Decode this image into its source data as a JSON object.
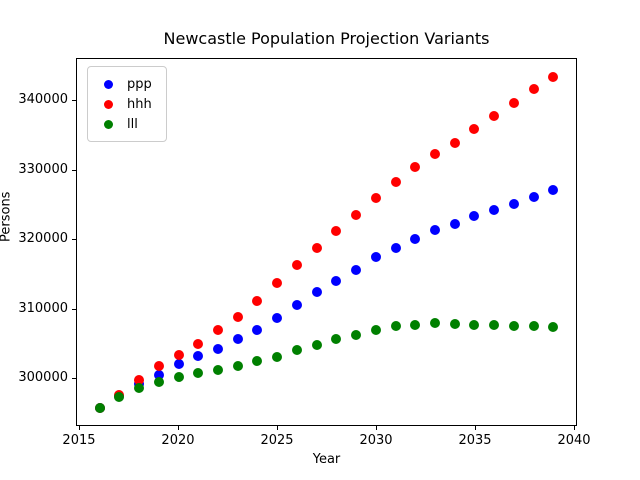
{
  "title": "Newcastle Population Projection Variants",
  "axes": {
    "xlabel": "Year",
    "ylabel": "Persons"
  },
  "legend": {
    "items": [
      {
        "label": "ppp",
        "color": "#0000ff"
      },
      {
        "label": "hhh",
        "color": "#ff0000"
      },
      {
        "label": "lll",
        "color": "#008000"
      }
    ]
  },
  "chart_data": {
    "type": "scatter",
    "title": "Newcastle Population Projection Variants",
    "xlabel": "Year",
    "ylabel": "Persons",
    "x": [
      2016,
      2017,
      2018,
      2019,
      2020,
      2021,
      2022,
      2023,
      2024,
      2025,
      2026,
      2027,
      2028,
      2029,
      2030,
      2031,
      2032,
      2033,
      2034,
      2035,
      2036,
      2037,
      2038,
      2039
    ],
    "series": [
      {
        "name": "ppp",
        "color": "#0000ff",
        "values": [
          295500,
          297300,
          299000,
          300400,
          301900,
          303100,
          304100,
          305500,
          306900,
          308600,
          310500,
          312400,
          313900,
          315600,
          317400,
          318800,
          320100,
          321300,
          322200,
          323400,
          324300,
          325100,
          326100,
          327100
        ]
      },
      {
        "name": "hhh",
        "color": "#ff0000",
        "values": [
          295500,
          297400,
          299600,
          301600,
          303300,
          304900,
          306900,
          308800,
          311100,
          313600,
          316300,
          318700,
          321200,
          323500,
          325900,
          328300,
          330400,
          332300,
          334000,
          336000,
          337800,
          339700,
          341700,
          343500
        ]
      },
      {
        "name": "lll",
        "color": "#008000",
        "values": [
          295500,
          297200,
          298500,
          299300,
          300000,
          300600,
          301100,
          301700,
          302300,
          302900,
          303900,
          304700,
          305500,
          306200,
          306900,
          307400,
          307600,
          307800,
          307700,
          307600,
          307600,
          307400,
          307400,
          307300
        ]
      }
    ],
    "xlim": [
      2014.85,
      2040.15
    ],
    "ylim": [
      293100,
      346100
    ],
    "xticks": [
      2015,
      2020,
      2025,
      2030,
      2035,
      2040
    ],
    "yticks": [
      300000,
      310000,
      320000,
      330000,
      340000
    ],
    "grid": false,
    "legend_position": "upper-left",
    "marker": "circle"
  }
}
